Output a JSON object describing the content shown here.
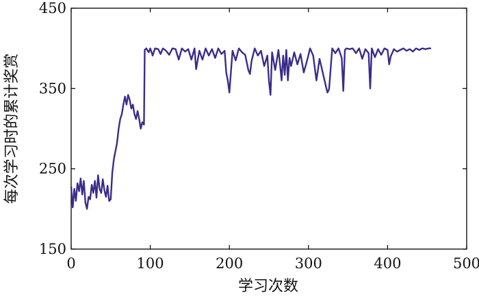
{
  "chart_data": {
    "type": "line",
    "title": "",
    "xlabel": "学习次数",
    "ylabel": "每次学习时的累计奖赏",
    "xlim": [
      0,
      500
    ],
    "ylim": [
      150,
      450
    ],
    "xticks": [
      0,
      100,
      200,
      300,
      400,
      500
    ],
    "yticks": [
      150,
      250,
      350,
      450
    ],
    "xtick_labels": [
      "0",
      "100",
      "200",
      "300",
      "400",
      "500"
    ],
    "ytick_labels": [
      "150",
      "250",
      "350",
      "450"
    ],
    "grid": false,
    "legend": "none",
    "line_color": "#3a2c8c",
    "series": [
      {
        "x": [
          0,
          2,
          4,
          6,
          8,
          10,
          12,
          14,
          16,
          18,
          20,
          22,
          24,
          26,
          28,
          30,
          32,
          34,
          36,
          38,
          40,
          42,
          44,
          46,
          48,
          50,
          52,
          54,
          56,
          58,
          60,
          62,
          64,
          66,
          68,
          70,
          72,
          74,
          76,
          78,
          80,
          82,
          84,
          86,
          88,
          90,
          92,
          93,
          95,
          98,
          100,
          103,
          106,
          110,
          113,
          116,
          120,
          124,
          128,
          132,
          136,
          140,
          144,
          148,
          152,
          156,
          158,
          162,
          166,
          170,
          174,
          178,
          182,
          186,
          190,
          194,
          196,
          198,
          200,
          204,
          208,
          212,
          216,
          220,
          224,
          226,
          228,
          232,
          236,
          240,
          244,
          248,
          250,
          252,
          254,
          258,
          262,
          264,
          266,
          268,
          270,
          272,
          274,
          276,
          278,
          282,
          286,
          290,
          294,
          298,
          302,
          306,
          310,
          314,
          318,
          322,
          324,
          326,
          330,
          334,
          338,
          342,
          344,
          346,
          348,
          352,
          356,
          360,
          364,
          368,
          372,
          376,
          378,
          380,
          384,
          388,
          392,
          396,
          400,
          402,
          404,
          408,
          412,
          416,
          420,
          424,
          428,
          432,
          436,
          440,
          444,
          448,
          452,
          455
        ],
        "y": [
          228,
          202,
          225,
          210,
          232,
          222,
          238,
          218,
          235,
          208,
          200,
          215,
          212,
          230,
          220,
          235,
          214,
          242,
          225,
          220,
          237,
          223,
          215,
          229,
          210,
          212,
          245,
          262,
          272,
          282,
          300,
          312,
          318,
          330,
          340,
          330,
          342,
          336,
          325,
          330,
          318,
          312,
          322,
          312,
          300,
          308,
          305,
          398,
          400,
          395,
          400,
          391,
          400,
          399,
          393,
          400,
          397,
          392,
          400,
          399,
          386,
          400,
          396,
          399,
          386,
          400,
          374,
          397,
          386,
          400,
          391,
          399,
          388,
          400,
          393,
          397,
          370,
          360,
          345,
          397,
          385,
          400,
          395,
          392,
          373,
          368,
          384,
          400,
          391,
          397,
          378,
          391,
          360,
          342,
          395,
          373,
          398,
          380,
          360,
          391,
          367,
          398,
          360,
          388,
          378,
          395,
          380,
          393,
          370,
          384,
          400,
          391,
          360,
          387,
          370,
          353,
          345,
          349,
          400,
          394,
          400,
          388,
          347,
          398,
          400,
          399,
          400,
          394,
          400,
          387,
          399,
          394,
          350,
          400,
          389,
          399,
          392,
          400,
          398,
          380,
          390,
          399,
          396,
          398,
          400,
          397,
          399,
          396,
          400,
          398,
          400,
          399,
          400,
          400
        ]
      }
    ]
  }
}
